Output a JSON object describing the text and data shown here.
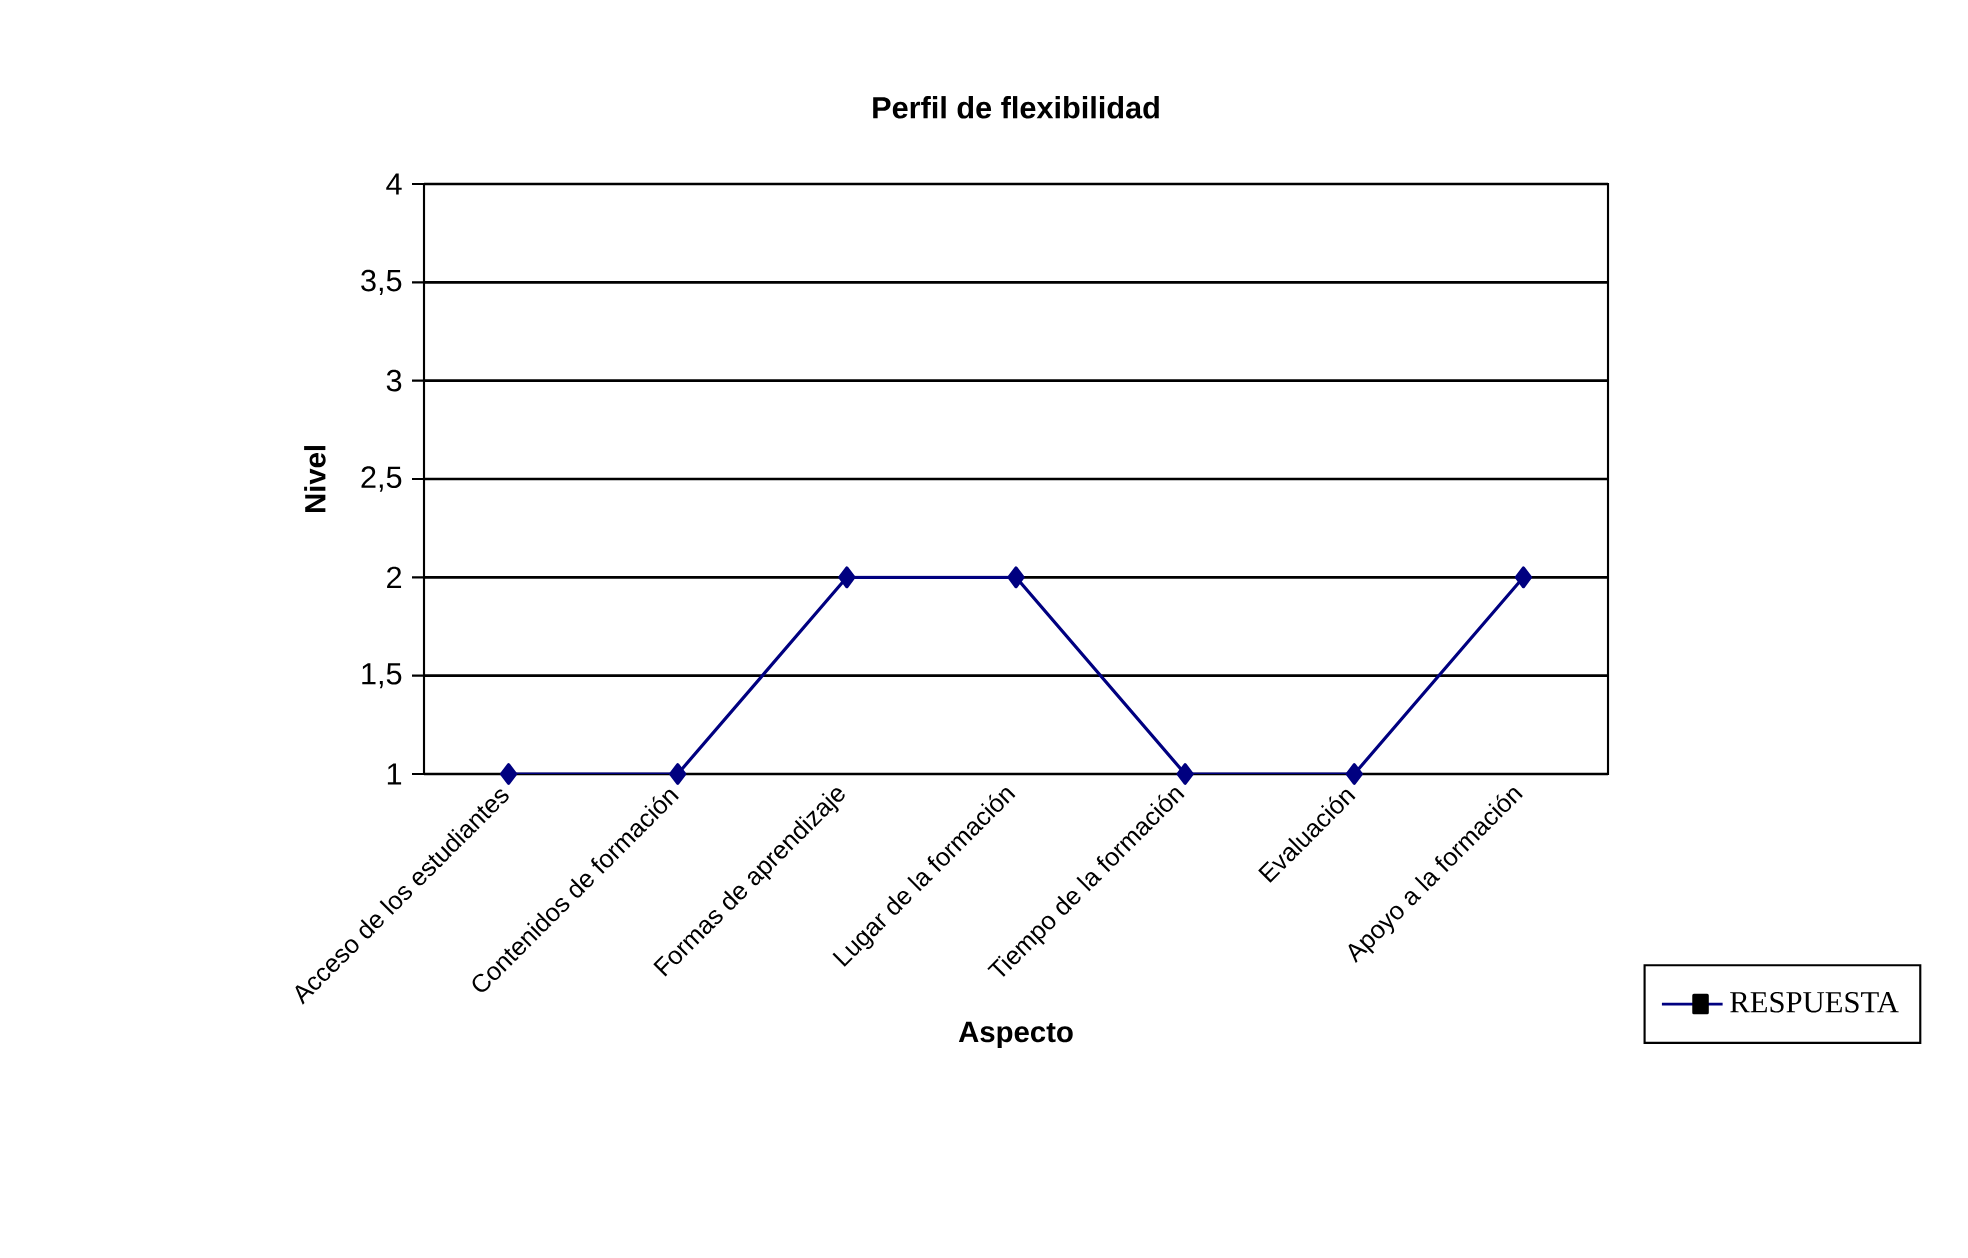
{
  "chart_data": {
    "type": "line",
    "title": "Perfil de flexibilidad",
    "xlabel": "Aspecto",
    "ylabel": "Nivel",
    "categories": [
      "Acceso de los estudiantes",
      "Contenidos de formación",
      "Formas de aprendizaje",
      "Lugar de la formación",
      "Tiempo de la formación",
      "Evaluación",
      "Apoyo a la formación"
    ],
    "series": [
      {
        "name": "RESPUESTA",
        "color": "#000080",
        "values": [
          1,
          1,
          2,
          2,
          1,
          1,
          2
        ]
      }
    ],
    "ylim": [
      1,
      4
    ],
    "yticks": [
      1,
      {
        "value": 1.5,
        "label": "1,5"
      },
      2,
      {
        "value": 2.5,
        "label": "2,5"
      },
      3,
      {
        "value": 3.5,
        "label": "3,5"
      },
      4
    ],
    "grid": "y",
    "legend": "right",
    "marker": "diamond",
    "line_style": "solid"
  }
}
